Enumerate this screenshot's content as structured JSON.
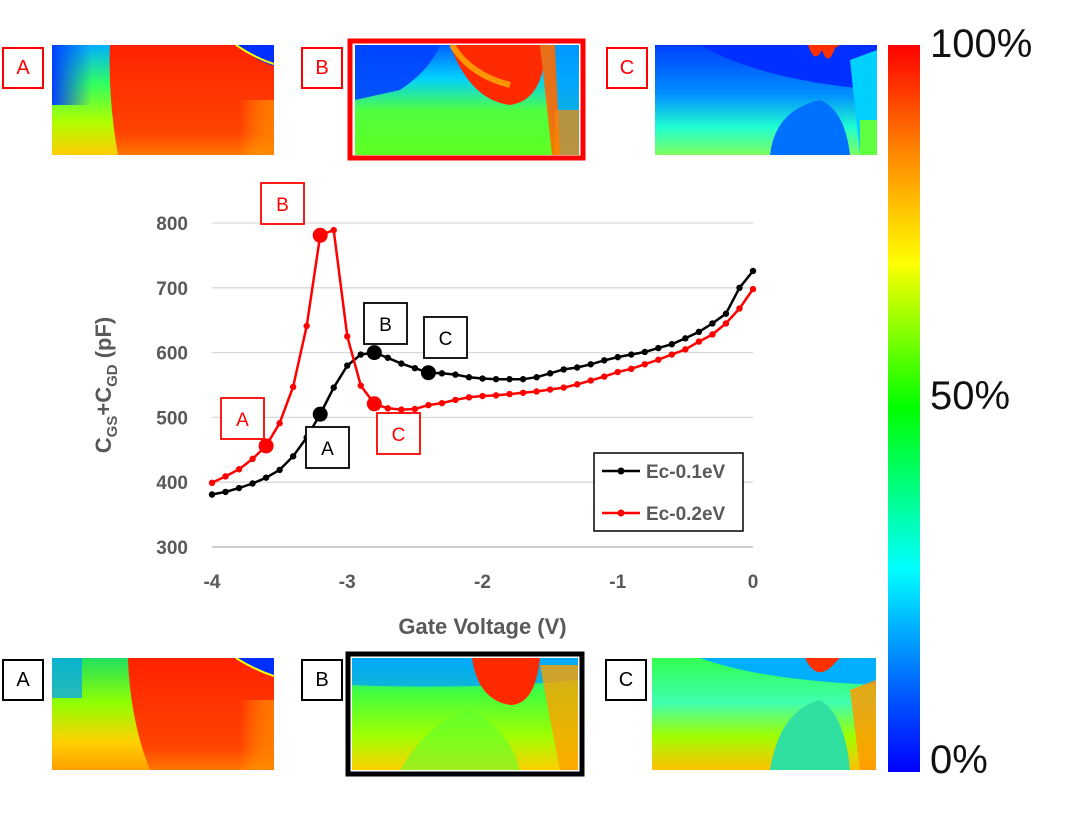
{
  "colorbar": {
    "top_label": "100%",
    "mid_label": "50%",
    "bottom_label": "0%"
  },
  "top_row": {
    "labels": [
      "A",
      "B",
      "C"
    ],
    "color": "#ff0000",
    "highlighted": "B"
  },
  "bottom_row": {
    "labels": [
      "A",
      "B",
      "C"
    ],
    "color": "#000000",
    "highlighted": "B"
  },
  "colors": {
    "black_series": "#000000",
    "red_series": "#ff0000",
    "grid": "#d9d9d9",
    "axis_text": "#595959"
  },
  "chart_data": {
    "type": "line",
    "title": "",
    "xlabel": "Gate Voltage (V)",
    "ylabel": "C_GS+C_GD (pF)",
    "ylabel_parts": {
      "c1": "C",
      "s1": "GS",
      "plus": "+C",
      "s2": "GD",
      "unit": " (pF)"
    },
    "xlim": [
      -4,
      0
    ],
    "ylim": [
      300,
      800
    ],
    "xticks": [
      -4,
      -3,
      -2,
      -1,
      0
    ],
    "xtick_labels": [
      "-4",
      "-3",
      "-2",
      "-1",
      "0"
    ],
    "yticks": [
      300,
      400,
      500,
      600,
      700,
      800
    ],
    "ytick_labels": [
      "300",
      "400",
      "500",
      "600",
      "700",
      "800"
    ],
    "grid": "horizontal",
    "legend_position": "bottom-right",
    "series": [
      {
        "name": "Ec-0.1eV",
        "color": "#000000",
        "x": [
          -4.0,
          -3.9,
          -3.8,
          -3.7,
          -3.6,
          -3.5,
          -3.4,
          -3.3,
          -3.2,
          -3.1,
          -3.0,
          -2.9,
          -2.8,
          -2.7,
          -2.6,
          -2.5,
          -2.4,
          -2.3,
          -2.2,
          -2.1,
          -2.0,
          -1.9,
          -1.8,
          -1.7,
          -1.6,
          -1.5,
          -1.4,
          -1.3,
          -1.2,
          -1.1,
          -1.0,
          -0.9,
          -0.8,
          -0.7,
          -0.6,
          -0.5,
          -0.4,
          -0.3,
          -0.2,
          -0.1,
          0.0
        ],
        "y": [
          381,
          385,
          391,
          398,
          407,
          419,
          440,
          469,
          505,
          546,
          580,
          597,
          600,
          592,
          583,
          576,
          569,
          568,
          566,
          562,
          560,
          559,
          559,
          559,
          562,
          568,
          574,
          577,
          582,
          588,
          593,
          597,
          601,
          607,
          613,
          622,
          632,
          645,
          660,
          700,
          726
        ],
        "markers": [
          {
            "label": "A",
            "x": -3.2,
            "y": 505
          },
          {
            "label": "B",
            "x": -2.8,
            "y": 600
          },
          {
            "label": "C",
            "x": -2.4,
            "y": 569
          }
        ]
      },
      {
        "name": "Ec-0.2eV",
        "color": "#ff0000",
        "x": [
          -4.0,
          -3.9,
          -3.8,
          -3.7,
          -3.6,
          -3.5,
          -3.4,
          -3.3,
          -3.2,
          -3.1,
          -3.0,
          -2.9,
          -2.8,
          -2.7,
          -2.6,
          -2.5,
          -2.4,
          -2.3,
          -2.2,
          -2.1,
          -2.0,
          -1.9,
          -1.8,
          -1.7,
          -1.6,
          -1.5,
          -1.4,
          -1.3,
          -1.2,
          -1.1,
          -1.0,
          -0.9,
          -0.8,
          -0.7,
          -0.6,
          -0.5,
          -0.4,
          -0.3,
          -0.2,
          -0.1,
          0.0
        ],
        "y": [
          399,
          409,
          420,
          436,
          456,
          491,
          547,
          641,
          781,
          789,
          625,
          549,
          521,
          514,
          512,
          513,
          519,
          522,
          527,
          531,
          533,
          534,
          536,
          538,
          540,
          543,
          546,
          551,
          557,
          563,
          570,
          575,
          582,
          589,
          597,
          605,
          617,
          628,
          645,
          668,
          698
        ],
        "markers": [
          {
            "label": "A",
            "x": -3.6,
            "y": 456
          },
          {
            "label": "B",
            "x": -3.2,
            "y": 781
          },
          {
            "label": "C",
            "x": -2.8,
            "y": 521
          }
        ]
      }
    ]
  }
}
